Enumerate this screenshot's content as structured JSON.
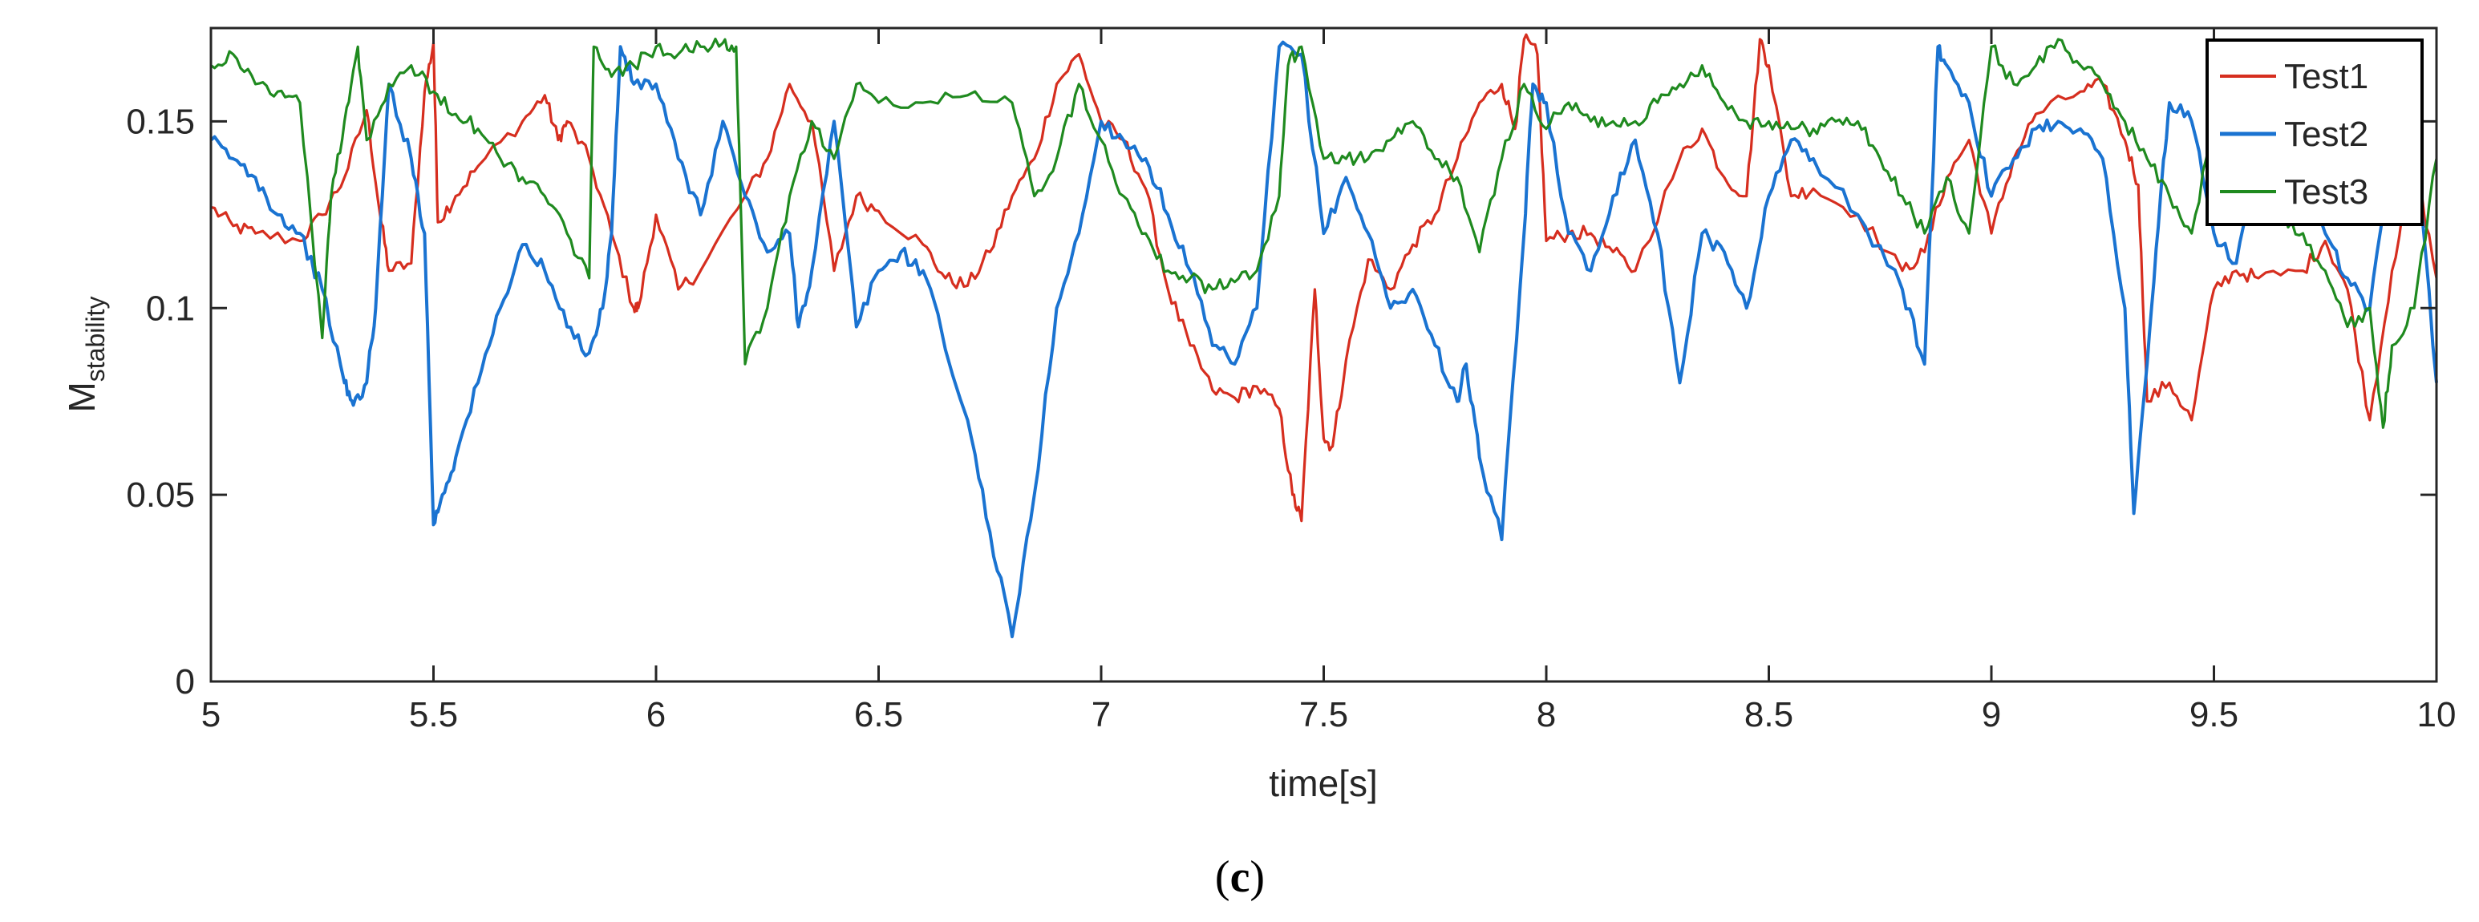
{
  "chart_data": {
    "type": "line",
    "xlabel": "time[s]",
    "ylabel_main": "M",
    "ylabel_sub": "stability",
    "xlim": [
      5,
      10
    ],
    "ylim": [
      0,
      0.175
    ],
    "x_ticks": [
      5,
      5.5,
      6,
      6.5,
      7,
      7.5,
      8,
      8.5,
      9,
      9.5,
      10
    ],
    "x_tick_labels": [
      "5",
      "5.5",
      "6",
      "6.5",
      "7",
      "7.5",
      "8",
      "8.5",
      "9",
      "9.5",
      "10"
    ],
    "y_ticks": [
      0,
      0.05,
      0.1,
      0.15
    ],
    "y_tick_labels": [
      "0",
      "0.05",
      "0.1",
      "0.15"
    ],
    "grid": false,
    "legend_position": "top-right",
    "caption_open": "(",
    "caption_letter": "c",
    "caption_close": ")",
    "series": [
      {
        "name": "Test1",
        "color": "#d62e1f",
        "x": [
          5.0,
          5.05,
          5.1,
          5.2,
          5.25,
          5.3,
          5.35,
          5.38,
          5.4,
          5.45,
          5.48,
          5.5,
          5.51,
          5.55,
          5.6,
          5.7,
          5.75,
          5.78,
          5.8,
          5.85,
          5.9,
          5.95,
          5.96,
          6.0,
          6.05,
          6.1,
          6.2,
          6.25,
          6.3,
          6.35,
          6.4,
          6.45,
          6.5,
          6.6,
          6.65,
          6.7,
          6.75,
          6.8,
          6.85,
          6.9,
          6.95,
          7.0,
          7.05,
          7.1,
          7.15,
          7.2,
          7.25,
          7.3,
          7.35,
          7.4,
          7.43,
          7.45,
          7.48,
          7.5,
          7.52,
          7.55,
          7.6,
          7.65,
          7.7,
          7.75,
          7.8,
          7.85,
          7.9,
          7.93,
          7.95,
          7.98,
          8.0,
          8.05,
          8.1,
          8.15,
          8.2,
          8.3,
          8.35,
          8.4,
          8.45,
          8.48,
          8.5,
          8.55,
          8.6,
          8.7,
          8.8,
          8.85,
          8.9,
          8.95,
          9.0,
          9.05,
          9.1,
          9.2,
          9.25,
          9.3,
          9.33,
          9.35,
          9.4,
          9.45,
          9.5,
          9.55,
          9.6,
          9.7,
          9.75,
          9.8,
          9.85,
          9.9,
          9.95,
          10.0
        ],
        "y": [
          0.127,
          0.122,
          0.12,
          0.118,
          0.125,
          0.135,
          0.153,
          0.125,
          0.11,
          0.112,
          0.158,
          0.171,
          0.123,
          0.13,
          0.138,
          0.15,
          0.157,
          0.145,
          0.15,
          0.14,
          0.12,
          0.1,
          0.1,
          0.125,
          0.105,
          0.11,
          0.13,
          0.14,
          0.16,
          0.15,
          0.11,
          0.13,
          0.126,
          0.117,
          0.108,
          0.106,
          0.115,
          0.13,
          0.14,
          0.16,
          0.168,
          0.15,
          0.145,
          0.132,
          0.105,
          0.09,
          0.078,
          0.076,
          0.079,
          0.073,
          0.05,
          0.043,
          0.105,
          0.065,
          0.063,
          0.086,
          0.113,
          0.105,
          0.117,
          0.125,
          0.14,
          0.155,
          0.16,
          0.148,
          0.172,
          0.168,
          0.118,
          0.12,
          0.12,
          0.115,
          0.11,
          0.14,
          0.148,
          0.135,
          0.13,
          0.172,
          0.165,
          0.13,
          0.132,
          0.125,
          0.11,
          0.115,
          0.135,
          0.145,
          0.12,
          0.14,
          0.152,
          0.158,
          0.16,
          0.145,
          0.133,
          0.075,
          0.08,
          0.07,
          0.105,
          0.11,
          0.108,
          0.11,
          0.118,
          0.105,
          0.07,
          0.11,
          0.14,
          0.108
        ]
      },
      {
        "name": "Test2",
        "color": "#1a73d1",
        "x": [
          5.0,
          5.05,
          5.1,
          5.15,
          5.2,
          5.25,
          5.3,
          5.32,
          5.35,
          5.37,
          5.4,
          5.45,
          5.48,
          5.5,
          5.52,
          5.55,
          5.6,
          5.65,
          5.7,
          5.75,
          5.8,
          5.85,
          5.88,
          5.9,
          5.92,
          5.95,
          6.0,
          6.05,
          6.1,
          6.15,
          6.2,
          6.25,
          6.3,
          6.32,
          6.35,
          6.4,
          6.45,
          6.5,
          6.55,
          6.6,
          6.7,
          6.75,
          6.8,
          6.85,
          6.9,
          6.95,
          7.0,
          7.05,
          7.1,
          7.15,
          7.2,
          7.25,
          7.3,
          7.35,
          7.4,
          7.45,
          7.5,
          7.55,
          7.6,
          7.65,
          7.7,
          7.75,
          7.8,
          7.82,
          7.85,
          7.9,
          7.95,
          7.97,
          8.0,
          8.05,
          8.1,
          8.15,
          8.2,
          8.25,
          8.3,
          8.35,
          8.4,
          8.45,
          8.5,
          8.55,
          8.6,
          8.7,
          8.8,
          8.85,
          8.88,
          8.9,
          8.95,
          9.0,
          9.05,
          9.1,
          9.15,
          9.2,
          9.25,
          9.3,
          9.32,
          9.35,
          9.38,
          9.4,
          9.45,
          9.5,
          9.55,
          9.6,
          9.65,
          9.7,
          9.75,
          9.8,
          9.85,
          9.9,
          9.95,
          10.0
        ],
        "y": [
          0.145,
          0.14,
          0.135,
          0.125,
          0.12,
          0.105,
          0.08,
          0.074,
          0.08,
          0.1,
          0.16,
          0.14,
          0.12,
          0.042,
          0.05,
          0.06,
          0.08,
          0.1,
          0.117,
          0.11,
          0.095,
          0.088,
          0.1,
          0.12,
          0.17,
          0.16,
          0.16,
          0.14,
          0.125,
          0.15,
          0.13,
          0.115,
          0.12,
          0.095,
          0.11,
          0.15,
          0.095,
          0.11,
          0.115,
          0.11,
          0.07,
          0.04,
          0.012,
          0.05,
          0.1,
          0.12,
          0.15,
          0.145,
          0.14,
          0.125,
          0.11,
          0.09,
          0.085,
          0.1,
          0.17,
          0.168,
          0.12,
          0.135,
          0.12,
          0.1,
          0.105,
          0.09,
          0.075,
          0.085,
          0.06,
          0.038,
          0.12,
          0.16,
          0.155,
          0.12,
          0.11,
          0.13,
          0.145,
          0.12,
          0.08,
          0.12,
          0.115,
          0.1,
          0.13,
          0.145,
          0.14,
          0.125,
          0.105,
          0.085,
          0.17,
          0.165,
          0.155,
          0.13,
          0.14,
          0.148,
          0.15,
          0.148,
          0.14,
          0.1,
          0.045,
          0.085,
          0.13,
          0.155,
          0.15,
          0.12,
          0.112,
          0.14,
          0.145,
          0.13,
          0.12,
          0.108,
          0.1,
          0.145,
          0.15,
          0.08
        ]
      },
      {
        "name": "Test3",
        "color": "#1f8a1f",
        "x": [
          5.0,
          5.05,
          5.1,
          5.15,
          5.2,
          5.25,
          5.27,
          5.3,
          5.33,
          5.35,
          5.4,
          5.45,
          5.5,
          5.55,
          5.6,
          5.65,
          5.7,
          5.75,
          5.8,
          5.85,
          5.86,
          5.9,
          5.95,
          6.0,
          6.05,
          6.1,
          6.15,
          6.18,
          6.2,
          6.25,
          6.3,
          6.35,
          6.4,
          6.45,
          6.5,
          6.6,
          6.7,
          6.8,
          6.85,
          6.9,
          6.95,
          7.0,
          7.05,
          7.1,
          7.15,
          7.2,
          7.25,
          7.3,
          7.35,
          7.4,
          7.42,
          7.45,
          7.5,
          7.55,
          7.6,
          7.65,
          7.7,
          7.75,
          7.8,
          7.85,
          7.9,
          7.95,
          8.0,
          8.05,
          8.1,
          8.15,
          8.2,
          8.25,
          8.3,
          8.35,
          8.4,
          8.45,
          8.5,
          8.55,
          8.6,
          8.65,
          8.7,
          8.75,
          8.8,
          8.85,
          8.9,
          8.95,
          9.0,
          9.05,
          9.1,
          9.15,
          9.2,
          9.25,
          9.3,
          9.35,
          9.4,
          9.45,
          9.5,
          9.55,
          9.6,
          9.65,
          9.7,
          9.75,
          9.8,
          9.85,
          9.88,
          9.9,
          9.95,
          10.0
        ],
        "y": [
          0.165,
          0.168,
          0.16,
          0.158,
          0.155,
          0.092,
          0.13,
          0.15,
          0.17,
          0.145,
          0.16,
          0.165,
          0.158,
          0.152,
          0.148,
          0.14,
          0.135,
          0.13,
          0.12,
          0.108,
          0.17,
          0.162,
          0.165,
          0.17,
          0.168,
          0.17,
          0.171,
          0.17,
          0.085,
          0.1,
          0.13,
          0.15,
          0.14,
          0.16,
          0.155,
          0.155,
          0.157,
          0.155,
          0.13,
          0.14,
          0.16,
          0.145,
          0.13,
          0.12,
          0.11,
          0.108,
          0.105,
          0.107,
          0.11,
          0.13,
          0.165,
          0.17,
          0.14,
          0.14,
          0.14,
          0.145,
          0.15,
          0.14,
          0.135,
          0.115,
          0.14,
          0.16,
          0.148,
          0.155,
          0.15,
          0.15,
          0.15,
          0.155,
          0.16,
          0.165,
          0.155,
          0.15,
          0.15,
          0.148,
          0.148,
          0.15,
          0.15,
          0.14,
          0.13,
          0.12,
          0.135,
          0.12,
          0.17,
          0.16,
          0.165,
          0.172,
          0.165,
          0.16,
          0.15,
          0.14,
          0.13,
          0.12,
          0.15,
          0.14,
          0.13,
          0.125,
          0.12,
          0.11,
          0.095,
          0.1,
          0.068,
          0.09,
          0.1,
          0.14
        ]
      }
    ]
  }
}
